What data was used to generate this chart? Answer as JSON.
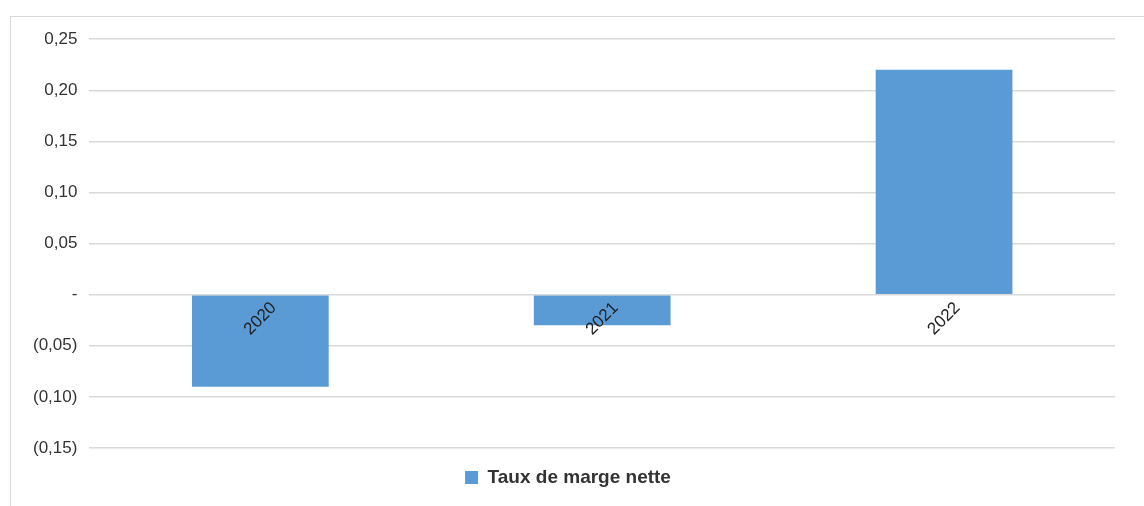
{
  "chart_data": {
    "type": "bar",
    "categories": [
      "2020",
      "2021",
      "2022"
    ],
    "series": [
      {
        "name": "Taux de marge nette",
        "color": "#5b9bd5",
        "values": [
          -0.09,
          -0.03,
          0.22
        ]
      }
    ],
    "ylim": [
      -0.15,
      0.25
    ],
    "yticks": [
      {
        "value": -0.15,
        "label": "(0,15)"
      },
      {
        "value": -0.1,
        "label": "(0,10)"
      },
      {
        "value": -0.05,
        "label": "(0,05)"
      },
      {
        "value": 0,
        "label": "-"
      },
      {
        "value": 0.05,
        "label": "0,05"
      },
      {
        "value": 0.1,
        "label": "0,10"
      },
      {
        "value": 0.15,
        "label": "0,15"
      },
      {
        "value": 0.2,
        "label": "0,20"
      },
      {
        "value": 0.25,
        "label": "0,25"
      }
    ],
    "grid": "y",
    "legend": "bottom"
  }
}
